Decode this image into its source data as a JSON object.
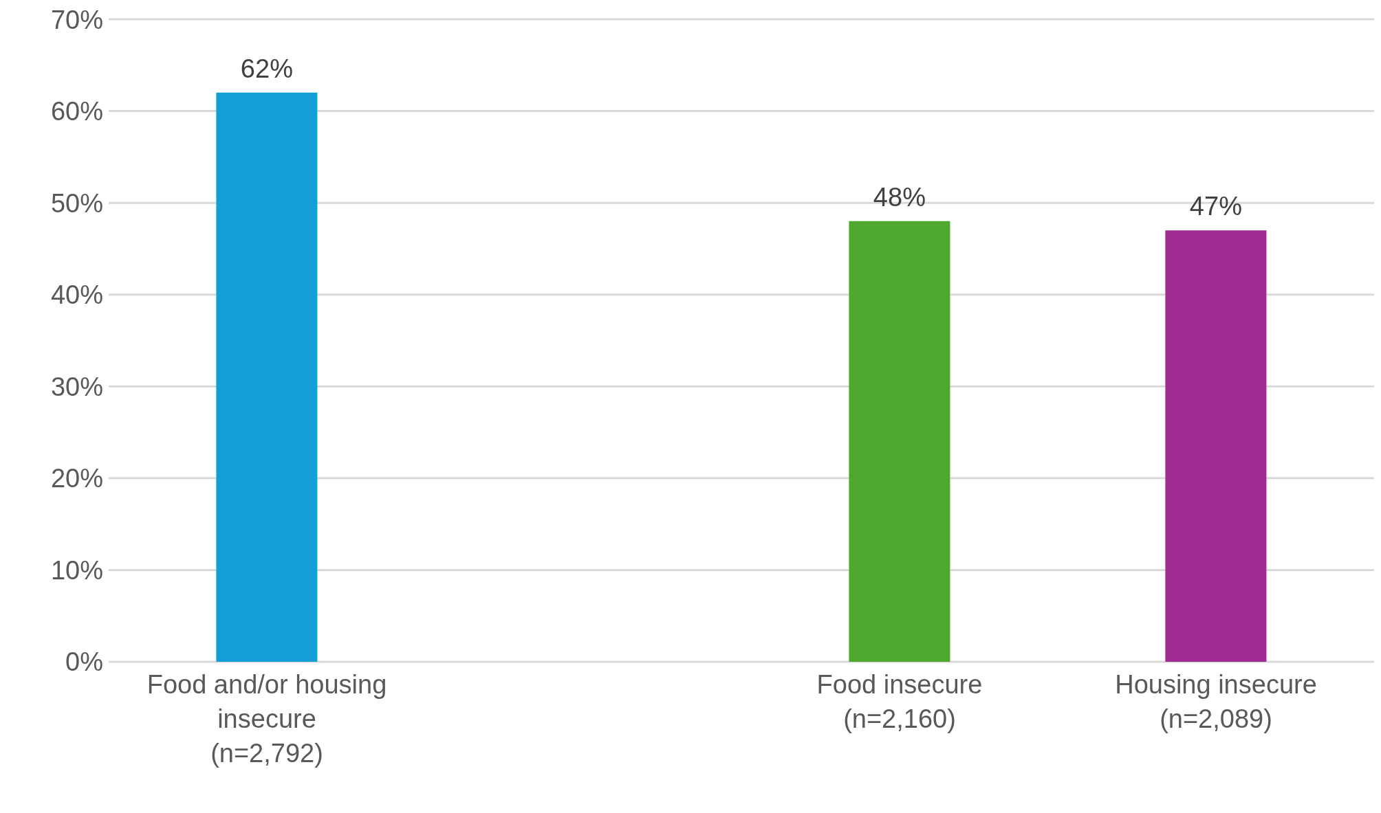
{
  "chart_data": {
    "type": "bar",
    "categories": [
      "Food and/or housing insecure (n=2,792)",
      null,
      "Food insecure (n=2,160)",
      "Housing insecure (n=2,089)"
    ],
    "values": [
      62,
      null,
      48,
      47
    ],
    "colors": [
      "#139fd6",
      null,
      "#4ea72e",
      "#a02b93"
    ],
    "value_labels": [
      "62%",
      null,
      "48%",
      "47%"
    ],
    "ylim": [
      0,
      70
    ],
    "yticks": [
      {
        "value": 0,
        "label": "0%"
      },
      {
        "value": 10,
        "label": "10%"
      },
      {
        "value": 20,
        "label": "20%"
      },
      {
        "value": 30,
        "label": "30%"
      },
      {
        "value": 40,
        "label": "40%"
      },
      {
        "value": 50,
        "label": "50%"
      },
      {
        "value": 60,
        "label": "60%"
      },
      {
        "value": 70,
        "label": "70%"
      }
    ],
    "grid": "y"
  }
}
